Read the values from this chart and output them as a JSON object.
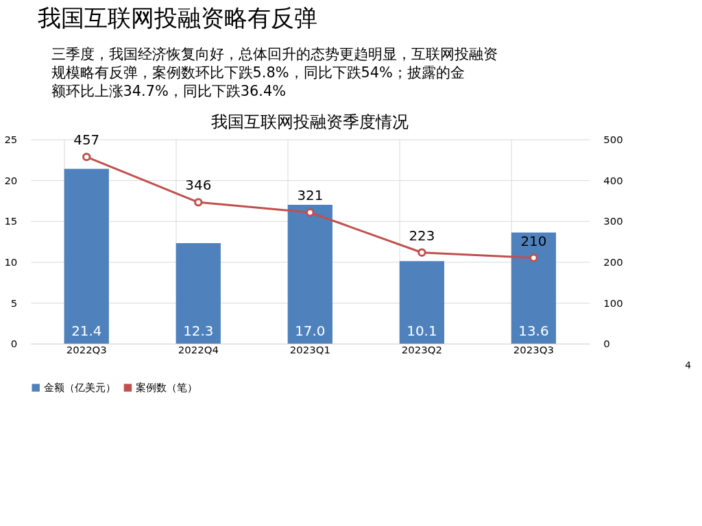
{
  "chart_data": {
    "type": "bar",
    "title": "我国互联网投融资季度情况",
    "categories": [
      "2022Q3",
      "2022Q4",
      "2023Q1",
      "2023Q2",
      "2023Q3"
    ],
    "series": [
      {
        "name": "金额（亿美元）",
        "color": "#4f81bd",
        "values": [
          21.4,
          12.3,
          17.0,
          10.1,
          13.6
        ],
        "value_labels": [
          "21.4",
          "12.3",
          "17.0",
          "10.1",
          "13.6"
        ]
      },
      {
        "name": "案例数（笔）",
        "type": "line",
        "axis": "y2",
        "color": "#c0504d",
        "values": [
          457,
          346,
          321,
          223,
          210
        ],
        "value_labels": [
          "457",
          "346",
          "321",
          "223",
          "210"
        ]
      }
    ],
    "ylim": [
      0,
      25
    ],
    "yticks": [
      0,
      5,
      10,
      15,
      20,
      25
    ],
    "y2lim": [
      0,
      500
    ],
    "y2ticks": [
      0,
      100,
      200,
      300,
      400,
      500
    ],
    "grid": true,
    "legend": "bottom",
    "marker": "circle",
    "line_style": "solid",
    "annotations": [
      "我国互联网投融资略有反弹",
      "三季度，我国经济恢复向好，总体回升的态势更趋明显，互联网投融资规模略有反弹，案例数环比下跌5.8%，同比下跌54%；披露的金额环比上涨34.7%，同比下跌36.4%",
      "4"
    ]
  }
}
